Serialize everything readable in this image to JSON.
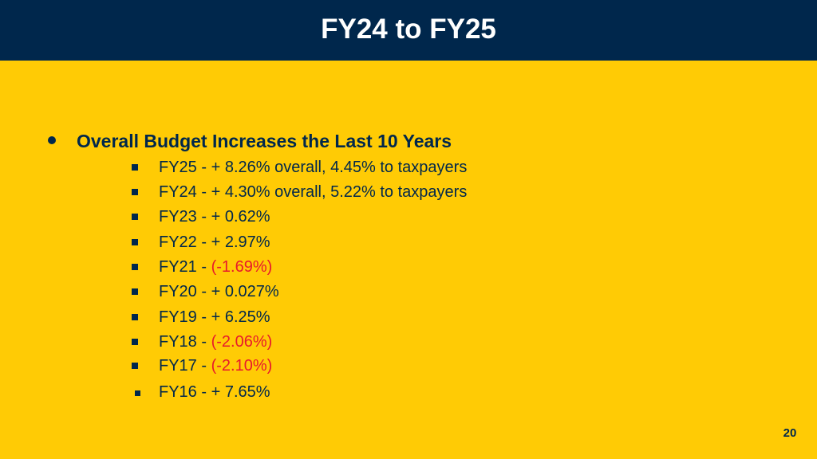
{
  "slide": {
    "title": "FY24 to FY25",
    "page_number": "20",
    "colors": {
      "header": "#00274C",
      "background": "#FFCB05",
      "text": "#00274C",
      "negative": "#E8192C"
    },
    "main_bullet": {
      "text": "Overall Budget Increases the Last 10 Years"
    },
    "items": [
      {
        "prefix": "FY25 - ",
        "value": "+ 8.26% overall, 4.45% to taxpayers",
        "negative": false
      },
      {
        "prefix": "FY24 - ",
        "value": "+ 4.30% overall, 5.22% to taxpayers",
        "negative": false
      },
      {
        "prefix": "FY23 - ",
        "value": "+ 0.62%",
        "negative": false
      },
      {
        "prefix": "FY22 - ",
        "value": "+ 2.97%",
        "negative": false
      },
      {
        "prefix": "FY21 - ",
        "value": "(-1.69%)",
        "negative": true
      },
      {
        "prefix": "FY20 - ",
        "value": "+ 0.027%",
        "negative": false
      },
      {
        "prefix": "FY19 - ",
        "value": "+ 6.25%",
        "negative": false
      },
      {
        "prefix": "FY18 - ",
        "value": "(-2.06%)",
        "negative": true
      },
      {
        "prefix": "FY17 - ",
        "value": "(-2.10%)",
        "negative": true
      },
      {
        "prefix": "FY16 - ",
        "value": "+ 7.65%",
        "negative": false
      }
    ]
  }
}
